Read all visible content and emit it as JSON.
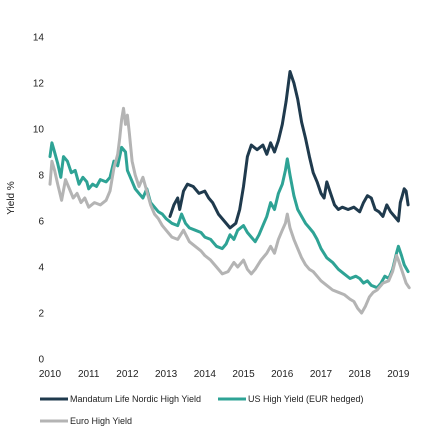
{
  "chart_data": {
    "type": "line",
    "title": "",
    "xlabel": "",
    "ylabel": "Yield %",
    "ylim": [
      0,
      14
    ],
    "yticks": [
      "0",
      "2",
      "4",
      "6",
      "8",
      "10",
      "12",
      "14"
    ],
    "xticks": [
      "2010",
      "2011",
      "2012",
      "2013",
      "2014",
      "2015",
      "2016",
      "2017",
      "2018",
      "2019"
    ],
    "xlim": [
      2010,
      2019.3
    ],
    "grid": false,
    "legend_position": "bottom",
    "series": [
      {
        "name": "Mandatum Life Nordic High Yield",
        "color": "#1f3a4d",
        "points": [
          [
            2013.1,
            6.2
          ],
          [
            2013.2,
            6.7
          ],
          [
            2013.3,
            7.0
          ],
          [
            2013.35,
            6.5
          ],
          [
            2013.45,
            7.3
          ],
          [
            2013.55,
            7.6
          ],
          [
            2013.7,
            7.5
          ],
          [
            2013.85,
            7.2
          ],
          [
            2014.0,
            7.3
          ],
          [
            2014.1,
            7.0
          ],
          [
            2014.2,
            6.8
          ],
          [
            2014.35,
            6.3
          ],
          [
            2014.5,
            6.0
          ],
          [
            2014.65,
            5.7
          ],
          [
            2014.8,
            5.9
          ],
          [
            2014.9,
            6.5
          ],
          [
            2015.0,
            7.5
          ],
          [
            2015.1,
            8.8
          ],
          [
            2015.2,
            9.3
          ],
          [
            2015.35,
            9.1
          ],
          [
            2015.5,
            9.3
          ],
          [
            2015.6,
            8.9
          ],
          [
            2015.7,
            9.4
          ],
          [
            2015.8,
            9.0
          ],
          [
            2015.9,
            9.5
          ],
          [
            2016.0,
            10.2
          ],
          [
            2016.1,
            11.2
          ],
          [
            2016.2,
            12.5
          ],
          [
            2016.3,
            12.0
          ],
          [
            2016.4,
            11.3
          ],
          [
            2016.5,
            10.3
          ],
          [
            2016.6,
            9.6
          ],
          [
            2016.7,
            8.8
          ],
          [
            2016.8,
            8.1
          ],
          [
            2016.9,
            7.7
          ],
          [
            2017.0,
            7.2
          ],
          [
            2017.08,
            7.0
          ],
          [
            2017.15,
            7.7
          ],
          [
            2017.25,
            7.2
          ],
          [
            2017.35,
            6.7
          ],
          [
            2017.45,
            6.5
          ],
          [
            2017.55,
            6.6
          ],
          [
            2017.7,
            6.5
          ],
          [
            2017.85,
            6.6
          ],
          [
            2018.0,
            6.4
          ],
          [
            2018.1,
            6.8
          ],
          [
            2018.2,
            7.1
          ],
          [
            2018.3,
            7.0
          ],
          [
            2018.4,
            6.5
          ],
          [
            2018.5,
            6.4
          ],
          [
            2018.6,
            6.2
          ],
          [
            2018.7,
            6.7
          ],
          [
            2018.8,
            6.4
          ],
          [
            2018.9,
            6.2
          ],
          [
            2019.0,
            6.0
          ],
          [
            2019.05,
            6.8
          ],
          [
            2019.1,
            7.1
          ],
          [
            2019.15,
            7.4
          ],
          [
            2019.2,
            7.3
          ],
          [
            2019.25,
            6.7
          ]
        ]
      },
      {
        "name": "US High Yield (EUR hedged)",
        "color": "#2ea395",
        "points": [
          [
            2010.0,
            8.8
          ],
          [
            2010.05,
            9.4
          ],
          [
            2010.1,
            9.1
          ],
          [
            2010.2,
            8.5
          ],
          [
            2010.28,
            7.9
          ],
          [
            2010.35,
            8.8
          ],
          [
            2010.45,
            8.6
          ],
          [
            2010.55,
            8.1
          ],
          [
            2010.65,
            8.2
          ],
          [
            2010.75,
            7.6
          ],
          [
            2010.85,
            7.9
          ],
          [
            2010.95,
            7.7
          ],
          [
            2011.0,
            7.4
          ],
          [
            2011.1,
            7.6
          ],
          [
            2011.2,
            7.5
          ],
          [
            2011.3,
            7.8
          ],
          [
            2011.45,
            7.7
          ],
          [
            2011.55,
            7.9
          ],
          [
            2011.65,
            8.6
          ],
          [
            2011.75,
            8.4
          ],
          [
            2011.85,
            9.2
          ],
          [
            2011.95,
            9.0
          ],
          [
            2012.0,
            8.2
          ],
          [
            2012.1,
            7.8
          ],
          [
            2012.2,
            7.4
          ],
          [
            2012.3,
            7.2
          ],
          [
            2012.4,
            7.0
          ],
          [
            2012.5,
            7.4
          ],
          [
            2012.6,
            6.8
          ],
          [
            2012.7,
            6.6
          ],
          [
            2012.8,
            6.4
          ],
          [
            2012.9,
            6.3
          ],
          [
            2013.0,
            6.1
          ],
          [
            2013.15,
            5.9
          ],
          [
            2013.3,
            5.8
          ],
          [
            2013.4,
            6.3
          ],
          [
            2013.5,
            5.9
          ],
          [
            2013.6,
            5.7
          ],
          [
            2013.75,
            5.6
          ],
          [
            2013.9,
            5.5
          ],
          [
            2014.0,
            5.3
          ],
          [
            2014.15,
            5.2
          ],
          [
            2014.3,
            4.9
          ],
          [
            2014.45,
            4.8
          ],
          [
            2014.55,
            5.0
          ],
          [
            2014.65,
            5.4
          ],
          [
            2014.75,
            5.2
          ],
          [
            2014.85,
            5.6
          ],
          [
            2015.0,
            5.8
          ],
          [
            2015.1,
            5.5
          ],
          [
            2015.2,
            5.3
          ],
          [
            2015.3,
            5.1
          ],
          [
            2015.4,
            5.4
          ],
          [
            2015.5,
            5.8
          ],
          [
            2015.6,
            6.2
          ],
          [
            2015.7,
            6.8
          ],
          [
            2015.8,
            6.5
          ],
          [
            2015.9,
            7.2
          ],
          [
            2016.0,
            7.6
          ],
          [
            2016.08,
            8.2
          ],
          [
            2016.13,
            8.7
          ],
          [
            2016.2,
            8.0
          ],
          [
            2016.3,
            7.1
          ],
          [
            2016.4,
            6.5
          ],
          [
            2016.5,
            6.2
          ],
          [
            2016.6,
            5.9
          ],
          [
            2016.7,
            5.7
          ],
          [
            2016.8,
            5.5
          ],
          [
            2016.9,
            5.2
          ],
          [
            2017.0,
            4.8
          ],
          [
            2017.15,
            4.4
          ],
          [
            2017.3,
            4.2
          ],
          [
            2017.45,
            3.9
          ],
          [
            2017.6,
            3.7
          ],
          [
            2017.75,
            3.5
          ],
          [
            2017.9,
            3.6
          ],
          [
            2018.0,
            3.5
          ],
          [
            2018.1,
            3.3
          ],
          [
            2018.2,
            3.4
          ],
          [
            2018.3,
            3.2
          ],
          [
            2018.45,
            3.1
          ],
          [
            2018.55,
            3.3
          ],
          [
            2018.65,
            3.6
          ],
          [
            2018.75,
            3.5
          ],
          [
            2018.85,
            3.9
          ],
          [
            2018.95,
            4.6
          ],
          [
            2019.0,
            4.9
          ],
          [
            2019.08,
            4.5
          ],
          [
            2019.15,
            4.1
          ],
          [
            2019.25,
            3.8
          ]
        ]
      },
      {
        "name": "Euro High Yield",
        "color": "#b4b4b4",
        "points": [
          [
            2010.0,
            7.6
          ],
          [
            2010.05,
            8.6
          ],
          [
            2010.12,
            8.2
          ],
          [
            2010.2,
            7.6
          ],
          [
            2010.3,
            6.9
          ],
          [
            2010.4,
            7.8
          ],
          [
            2010.5,
            7.4
          ],
          [
            2010.6,
            7.0
          ],
          [
            2010.7,
            7.2
          ],
          [
            2010.8,
            6.8
          ],
          [
            2010.9,
            7.0
          ],
          [
            2011.0,
            6.6
          ],
          [
            2011.15,
            6.8
          ],
          [
            2011.3,
            6.7
          ],
          [
            2011.45,
            6.9
          ],
          [
            2011.55,
            7.3
          ],
          [
            2011.65,
            8.3
          ],
          [
            2011.75,
            8.9
          ],
          [
            2011.8,
            9.6
          ],
          [
            2011.85,
            10.4
          ],
          [
            2011.9,
            10.9
          ],
          [
            2011.95,
            10.2
          ],
          [
            2012.0,
            10.6
          ],
          [
            2012.05,
            9.8
          ],
          [
            2012.12,
            8.6
          ],
          [
            2012.2,
            8.0
          ],
          [
            2012.3,
            7.5
          ],
          [
            2012.4,
            7.9
          ],
          [
            2012.5,
            7.3
          ],
          [
            2012.6,
            6.7
          ],
          [
            2012.7,
            6.3
          ],
          [
            2012.8,
            6.1
          ],
          [
            2012.9,
            5.8
          ],
          [
            2013.0,
            5.6
          ],
          [
            2013.15,
            5.3
          ],
          [
            2013.3,
            5.2
          ],
          [
            2013.45,
            5.6
          ],
          [
            2013.6,
            5.1
          ],
          [
            2013.75,
            4.9
          ],
          [
            2013.9,
            4.7
          ],
          [
            2014.0,
            4.5
          ],
          [
            2014.15,
            4.3
          ],
          [
            2014.3,
            4.0
          ],
          [
            2014.45,
            3.7
          ],
          [
            2014.6,
            3.8
          ],
          [
            2014.75,
            4.2
          ],
          [
            2014.85,
            4.0
          ],
          [
            2015.0,
            4.3
          ],
          [
            2015.1,
            3.9
          ],
          [
            2015.2,
            3.7
          ],
          [
            2015.3,
            3.9
          ],
          [
            2015.45,
            4.3
          ],
          [
            2015.6,
            4.6
          ],
          [
            2015.7,
            4.9
          ],
          [
            2015.8,
            4.6
          ],
          [
            2015.9,
            5.2
          ],
          [
            2016.0,
            5.6
          ],
          [
            2016.08,
            5.9
          ],
          [
            2016.13,
            6.3
          ],
          [
            2016.2,
            5.7
          ],
          [
            2016.3,
            5.2
          ],
          [
            2016.4,
            4.8
          ],
          [
            2016.5,
            4.4
          ],
          [
            2016.6,
            4.1
          ],
          [
            2016.7,
            3.9
          ],
          [
            2016.8,
            3.8
          ],
          [
            2016.9,
            3.6
          ],
          [
            2017.0,
            3.4
          ],
          [
            2017.15,
            3.2
          ],
          [
            2017.3,
            3.0
          ],
          [
            2017.45,
            2.9
          ],
          [
            2017.6,
            2.8
          ],
          [
            2017.75,
            2.6
          ],
          [
            2017.85,
            2.5
          ],
          [
            2017.95,
            2.2
          ],
          [
            2018.05,
            2.0
          ],
          [
            2018.15,
            2.3
          ],
          [
            2018.25,
            2.7
          ],
          [
            2018.35,
            2.9
          ],
          [
            2018.45,
            3.0
          ],
          [
            2018.6,
            3.3
          ],
          [
            2018.75,
            3.4
          ],
          [
            2018.85,
            3.8
          ],
          [
            2018.95,
            4.5
          ],
          [
            2019.0,
            4.3
          ],
          [
            2019.1,
            3.8
          ],
          [
            2019.2,
            3.3
          ],
          [
            2019.28,
            3.1
          ]
        ]
      }
    ]
  }
}
